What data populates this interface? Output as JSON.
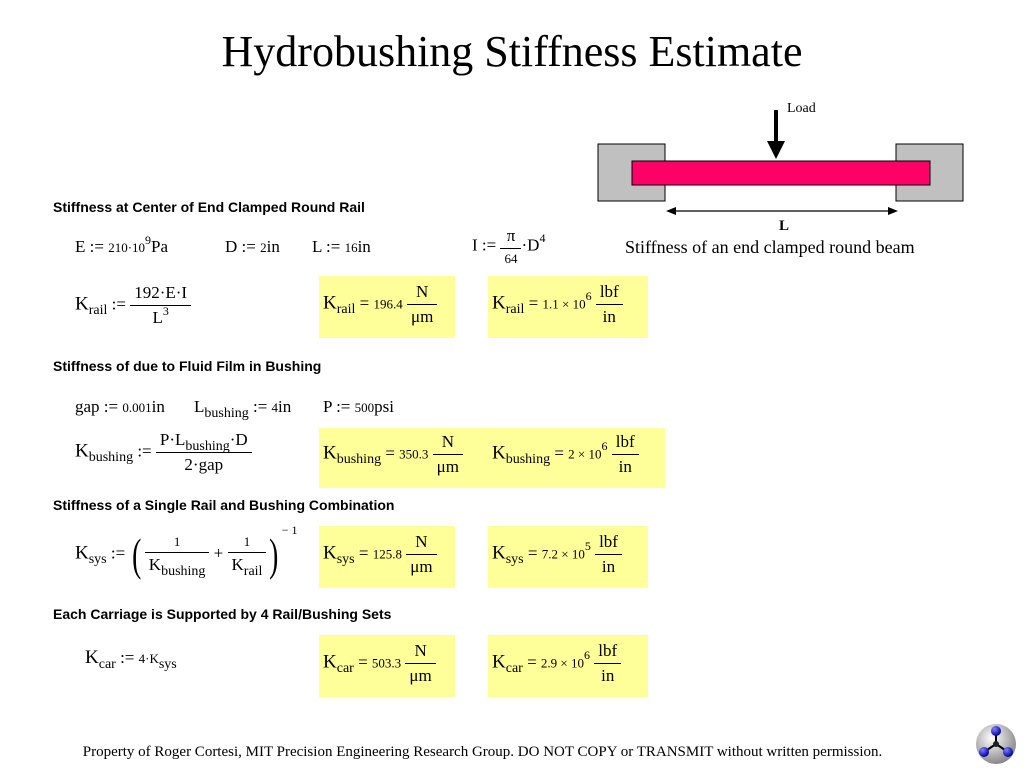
{
  "title": "Hydrobushing Stiffness Estimate",
  "diagram": {
    "load_label": "Load",
    "length_label": "L",
    "caption": "Stiffness of an end clamped round beam",
    "colors": {
      "rail": "#ff0066",
      "clamp": "#c0c0c0"
    }
  },
  "sections": {
    "s1": "Stiffness at Center of End Clamped Round Rail",
    "s2": "Stiffness of due to Fluid Film in Bushing",
    "s3": "Stiffness of a Single Rail and Bushing Combination",
    "s4": "Each Carriage is Supported by 4 Rail/Bushing Sets"
  },
  "defs": {
    "E": {
      "lhs": "E",
      "op": ":=",
      "coef": "210·10",
      "exp": "9",
      "unit": "Pa"
    },
    "D": {
      "lhs": "D",
      "op": ":=",
      "val": "2",
      "unit": "in"
    },
    "L": {
      "lhs": "L",
      "op": ":=",
      "val": "16",
      "unit": "in"
    },
    "I": {
      "lhs": "I",
      "op": ":=",
      "num": "π",
      "den": "64",
      "tail": "·D",
      "exp": "4"
    },
    "krail": {
      "K": "K",
      "sub": "rail",
      "op": ":=",
      "num": "192·E·I",
      "den": "L",
      "den_exp": "3"
    },
    "gap": {
      "lhs": "gap",
      "op": ":=",
      "val": "0.001",
      "unit": "in"
    },
    "lbush": {
      "lhs": "L",
      "sub": "bushing",
      "op": ":=",
      "val": "4",
      "unit": "in"
    },
    "P": {
      "lhs": "P",
      "op": ":=",
      "val": "500",
      "unit": "psi"
    },
    "kbush": {
      "K": "K",
      "sub": "bushing",
      "op": ":=",
      "num_a": "P·L",
      "num_sub": "bushing",
      "num_b": "·D",
      "den": "2·gap"
    },
    "ksys": {
      "K": "K",
      "sub": "sys",
      "op": ":=",
      "one": "1",
      "plus": "+",
      "d1": "K",
      "d1_sub": "bushing",
      "d2": "K",
      "d2_sub": "rail",
      "exp": "− 1"
    },
    "kcar": {
      "K": "K",
      "sub": "car",
      "op": ":=",
      "coef": "4·K",
      "coef_sub": "sys"
    }
  },
  "results": [
    {
      "K": "K",
      "sub": "rail",
      "eq": "=",
      "si_val": "196.4",
      "si_num": "N",
      "si_den": "μm",
      "imp_val": "1.1 × 10",
      "imp_exp": "6",
      "imp_num": "lbf",
      "imp_den": "in"
    },
    {
      "K": "K",
      "sub": "bushing",
      "eq": "=",
      "si_val": "350.3",
      "si_num": "N",
      "si_den": "μm",
      "imp_val": "2 × 10",
      "imp_exp": "6",
      "imp_num": "lbf",
      "imp_den": "in"
    },
    {
      "K": "K",
      "sub": "sys",
      "eq": "=",
      "si_val": "125.8",
      "si_num": "N",
      "si_den": "μm",
      "imp_val": "7.2 × 10",
      "imp_exp": "5",
      "imp_num": "lbf",
      "imp_den": "in"
    },
    {
      "K": "K",
      "sub": "car",
      "eq": "=",
      "si_val": "503.3",
      "si_num": "N",
      "si_den": "μm",
      "imp_val": "2.9 × 10",
      "imp_exp": "6",
      "imp_num": "lbf",
      "imp_den": "in"
    }
  ],
  "footer": "Property of Roger Cortesi, MIT Precision Engineering Research Group. DO NOT COPY or TRANSMIT without written permission.",
  "logo_icon": "molecule-logo-icon"
}
